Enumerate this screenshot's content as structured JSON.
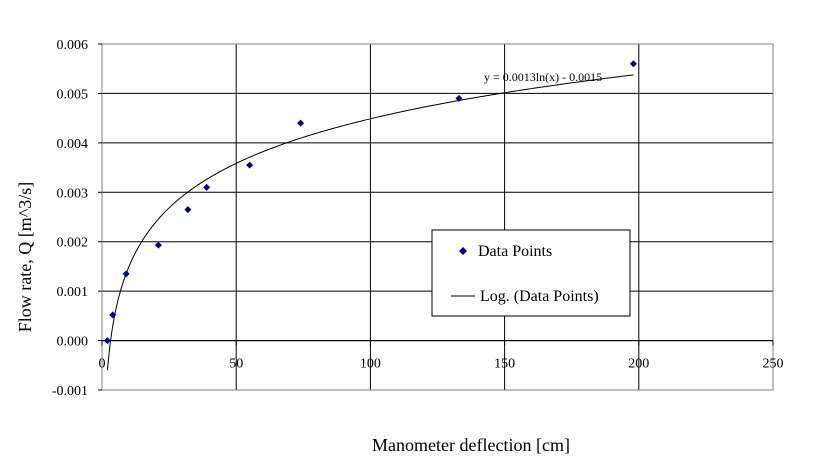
{
  "chart_data": {
    "type": "scatter",
    "xlabel": "Manometer deflection [cm]",
    "ylabel": "Flow rate, Q [m^3/s]",
    "xlim": [
      0,
      250
    ],
    "ylim": [
      -0.001,
      0.006
    ],
    "x_ticks": [
      "0",
      "50",
      "100",
      "150",
      "200",
      "250"
    ],
    "y_ticks": [
      "-0.001",
      "0.000",
      "0.001",
      "0.002",
      "0.003",
      "0.004",
      "0.005",
      "0.006"
    ],
    "grid": true,
    "legend_position": "right-center",
    "series": [
      {
        "name": "Data Points",
        "kind": "scatter",
        "marker": "diamond",
        "color": "#00008b",
        "points": [
          {
            "x": 2,
            "y": 0.0
          },
          {
            "x": 4,
            "y": 0.00052
          },
          {
            "x": 9,
            "y": 0.00135
          },
          {
            "x": 21,
            "y": 0.00193
          },
          {
            "x": 32,
            "y": 0.00265
          },
          {
            "x": 39,
            "y": 0.0031
          },
          {
            "x": 55,
            "y": 0.00355
          },
          {
            "x": 74,
            "y": 0.0044
          },
          {
            "x": 133,
            "y": 0.0049
          },
          {
            "x": 198,
            "y": 0.0056
          }
        ]
      },
      {
        "name": "Log. (Data Points)",
        "kind": "trendline",
        "color": "#000000",
        "equation": "y = 0.0013ln(x) - 0.0015",
        "a": 0.0013,
        "b": -0.0015,
        "x_range": [
          2,
          198
        ]
      }
    ]
  }
}
